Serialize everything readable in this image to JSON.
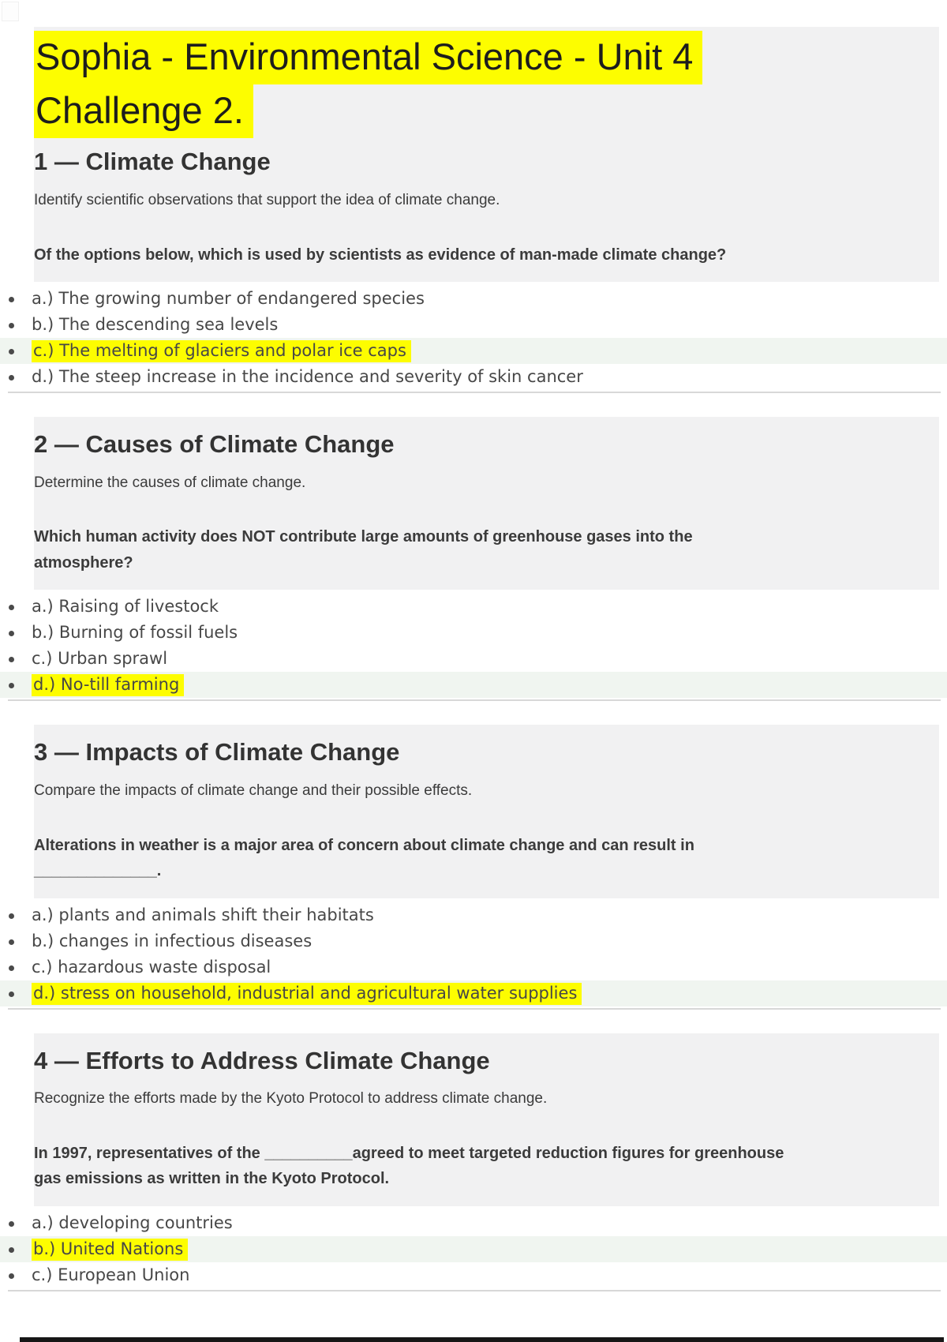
{
  "colors": {
    "highlight": "#fdfd00",
    "answer_row_tint": "#f0f5f0",
    "block_background": "#f1f1f2",
    "divider": "#d8d8d8",
    "bottom_bar": "#161616"
  },
  "title": {
    "lines": [
      "Sophia - Environmental Science - Unit 4",
      "Challenge 2."
    ]
  },
  "sections": [
    {
      "heading": "1 — Climate Change",
      "description": "Identify scientific observations that support the idea of climate change.",
      "question_lines": [
        "Of the options below, which is used by scientists as evidence of man-made climate change?"
      ],
      "options": [
        {
          "text": "a.) The growing number of endangered species",
          "highlighted": false
        },
        {
          "text": "b.) The descending sea levels",
          "highlighted": false
        },
        {
          "text": "c.) The melting of glaciers and polar ice caps",
          "highlighted": true
        },
        {
          "text": "d.) The steep increase in the incidence and severity of skin cancer",
          "highlighted": false
        }
      ]
    },
    {
      "heading": "2 — Causes of Climate Change",
      "description": "Determine the causes of climate change.",
      "question_lines": [
        "Which human activity does NOT contribute large amounts of greenhouse gases into the",
        "atmosphere?"
      ],
      "options": [
        {
          "text": "a.) Raising of livestock",
          "highlighted": false
        },
        {
          "text": "b.) Burning of fossil fuels",
          "highlighted": false
        },
        {
          "text": "c.) Urban sprawl",
          "highlighted": false
        },
        {
          "text": "d.) No-till farming",
          "highlighted": true
        }
      ]
    },
    {
      "heading": "3 — Impacts of Climate Change",
      "description": "Compare the impacts of climate change and their possible effects.",
      "question_lines": [
        "Alterations in weather is a major area of concern about climate change and can result in",
        "______________."
      ],
      "options": [
        {
          "text": "a.) plants and animals shift their habitats",
          "highlighted": false
        },
        {
          "text": "b.) changes in infectious diseases",
          "highlighted": false
        },
        {
          "text": "c.) hazardous waste disposal",
          "highlighted": false
        },
        {
          "text": "d.) stress on household, industrial and agricultural water supplies",
          "highlighted": true
        }
      ]
    },
    {
      "heading": "4 — Efforts to Address Climate Change",
      "description": "Recognize the efforts made by the Kyoto Protocol to address climate change.",
      "question_lines": [
        "In 1997, representatives of the __________agreed to meet targeted reduction figures for greenhouse",
        "gas emissions as written in the Kyoto Protocol."
      ],
      "options": [
        {
          "text": "a.) developing countries",
          "highlighted": false
        },
        {
          "text": "b.) United Nations",
          "highlighted": true
        },
        {
          "text": "c.) European Union",
          "highlighted": false
        }
      ]
    }
  ]
}
